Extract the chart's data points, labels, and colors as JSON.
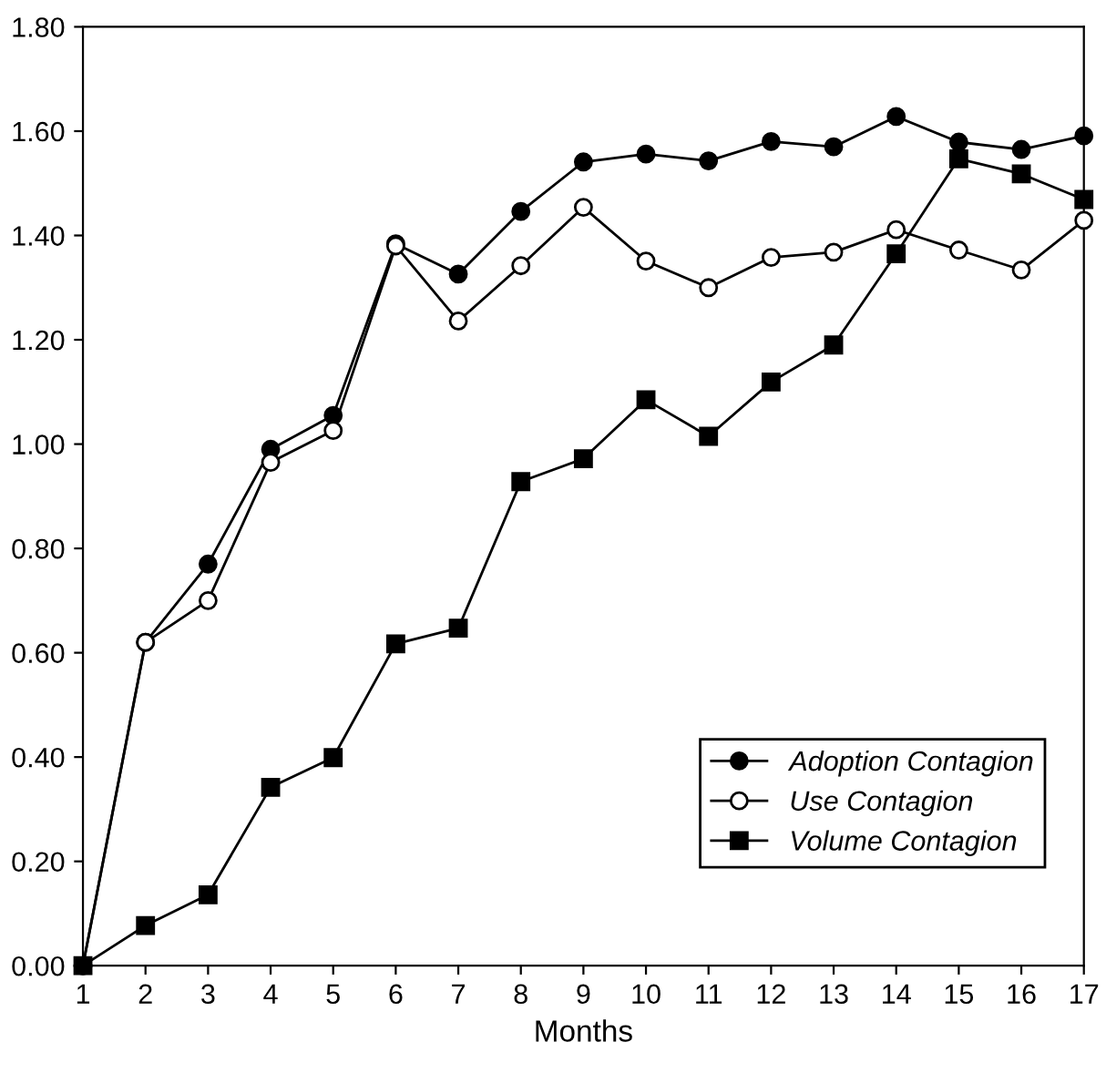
{
  "chart_data": {
    "type": "line",
    "xlabel": "Months",
    "x": [
      1,
      2,
      3,
      4,
      5,
      6,
      7,
      8,
      9,
      10,
      11,
      12,
      13,
      14,
      15,
      16,
      17
    ],
    "series": [
      {
        "name": "Adoption Contagion",
        "color": "#000000",
        "marker": "circle",
        "values": [
          0,
          0.62,
          0.77,
          0.99,
          1.055,
          1.384,
          1.326,
          1.446,
          1.541,
          1.556,
          1.543,
          1.58,
          1.57,
          1.628,
          1.579,
          1.565,
          1.591
        ]
      },
      {
        "name": "Use Contagion",
        "color": "#000000",
        "marker": "circle",
        "colors": [
          "#ffffff",
          "#ffffff",
          "#ffffff",
          "#ffffff",
          "#ffffff",
          "#ffffff",
          "#ffffff",
          "#ffffff",
          "#ffffff",
          "#ffffff",
          "#ffffff",
          "#ffffff",
          "#ffffff",
          "#ffffff",
          "#ffffff",
          "#ffffff",
          "#ffffff"
        ],
        "values": [
          0,
          0.62,
          0.7,
          0.965,
          1.026,
          1.38,
          1.236,
          1.342,
          1.454,
          1.351,
          1.3,
          1.358,
          1.368,
          1.411,
          1.372,
          1.334,
          1.429
        ]
      },
      {
        "name": "Volume Contagion",
        "color": "#000000",
        "marker": "square",
        "values": [
          0,
          0.077,
          0.136,
          0.342,
          0.399,
          0.617,
          0.647,
          0.928,
          0.972,
          1.085,
          1.015,
          1.119,
          1.19,
          1.365,
          1.547,
          1.518,
          1.469
        ]
      }
    ],
    "xlim": [
      1,
      17
    ],
    "xticks": [
      1,
      2,
      3,
      4,
      5,
      6,
      7,
      8,
      9,
      10,
      11,
      12,
      13,
      14,
      15,
      16,
      17
    ],
    "ylim": [
      0,
      1.8
    ],
    "yticks": [
      {
        "value": 0,
        "label": "0.00"
      },
      {
        "value": 0.2,
        "label": "0.20"
      },
      {
        "value": 0.4,
        "label": "0.40"
      },
      {
        "value": 0.6,
        "label": "0.60"
      },
      {
        "value": 0.8,
        "label": "0.80"
      },
      {
        "value": 1.0,
        "label": "1.00"
      },
      {
        "value": 1.2,
        "label": "1.20"
      },
      {
        "value": 1.4,
        "label": "1.40"
      },
      {
        "value": 1.6,
        "label": "1.60"
      },
      {
        "value": 1.8,
        "label": "1.80"
      }
    ],
    "grid": false,
    "legend": "bottom right",
    "line_style": "solid"
  }
}
